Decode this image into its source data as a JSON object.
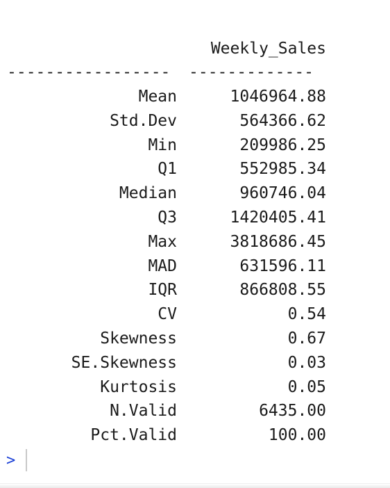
{
  "table": {
    "column_header": "Weekly_Sales",
    "rule_left": "-----------------",
    "rule_right": "-------------",
    "rows": [
      {
        "label": "Mean",
        "value": "1046964.88"
      },
      {
        "label": "Std.Dev",
        "value": "564366.62"
      },
      {
        "label": "Min",
        "value": "209986.25"
      },
      {
        "label": "Q1",
        "value": "552985.34"
      },
      {
        "label": "Median",
        "value": "960746.04"
      },
      {
        "label": "Q3",
        "value": "1420405.41"
      },
      {
        "label": "Max",
        "value": "3818686.45"
      },
      {
        "label": "MAD",
        "value": "631596.11"
      },
      {
        "label": "IQR",
        "value": "866808.55"
      },
      {
        "label": "CV",
        "value": "0.54"
      },
      {
        "label": "Skewness",
        "value": "0.67"
      },
      {
        "label": "SE.Skewness",
        "value": "0.03"
      },
      {
        "label": "Kurtosis",
        "value": "0.05"
      },
      {
        "label": "N.Valid",
        "value": "6435.00"
      },
      {
        "label": "Pct.Valid",
        "value": "100.00"
      }
    ]
  },
  "console": {
    "prompt": ">",
    "prompt_color": "#1a3fd6"
  }
}
